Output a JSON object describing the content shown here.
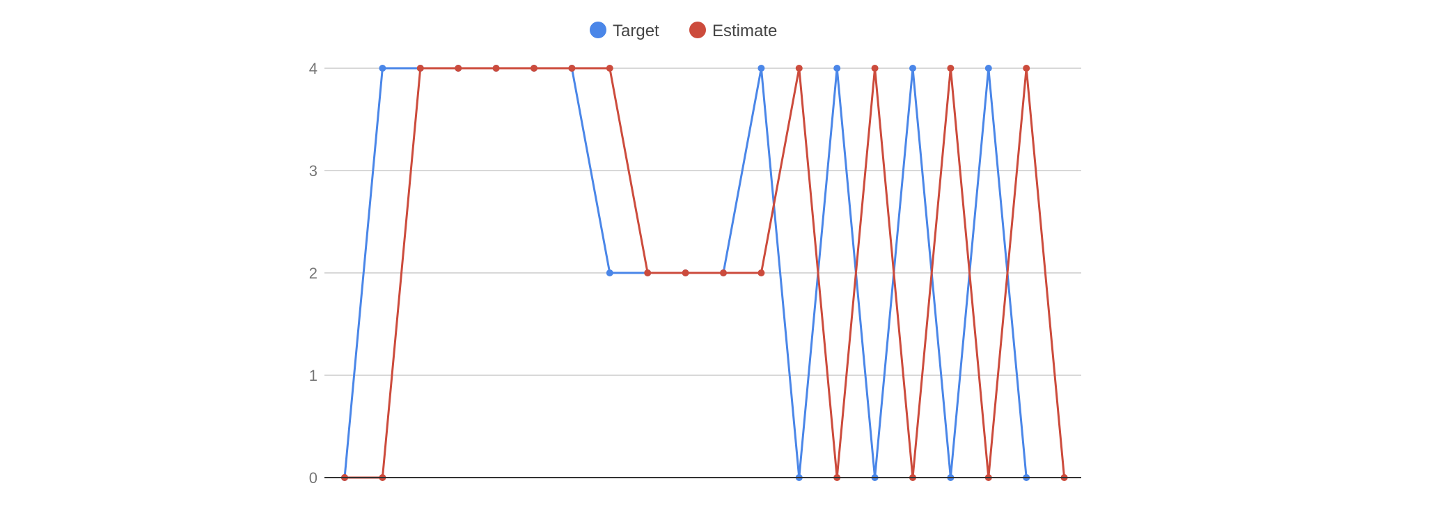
{
  "chart_data": {
    "type": "line",
    "title": "",
    "xlabel": "",
    "ylabel": "",
    "ylim": [
      0,
      4
    ],
    "yticks": [
      0,
      1,
      2,
      3,
      4
    ],
    "grid": true,
    "legend_position": "top-center",
    "x": [
      1,
      2,
      3,
      4,
      5,
      6,
      7,
      8,
      9,
      10,
      11,
      12,
      13,
      14,
      15,
      16,
      17,
      18,
      19,
      20
    ],
    "series": [
      {
        "name": "Target",
        "color": "#4a86e8",
        "values": [
          0,
          4,
          4,
          4,
          4,
          4,
          4,
          2,
          2,
          2,
          2,
          4,
          0,
          4,
          0,
          4,
          0,
          4,
          0,
          null
        ]
      },
      {
        "name": "Estimate",
        "color": "#cc4b3c",
        "values": [
          0,
          0,
          4,
          4,
          4,
          4,
          4,
          4,
          2,
          2,
          2,
          2,
          4,
          0,
          4,
          0,
          4,
          0,
          4,
          0
        ]
      }
    ]
  }
}
